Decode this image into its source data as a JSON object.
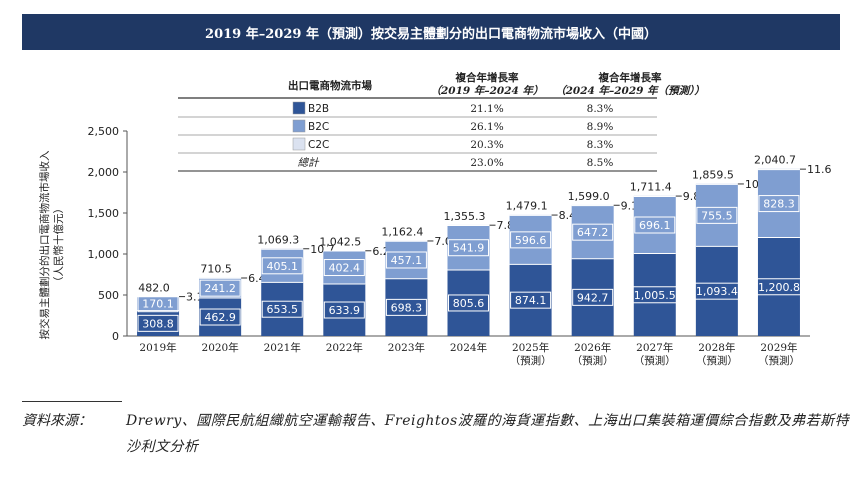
{
  "title": "2019 年–2029 年（預測）按交易主體劃分的出口電商物流市場收入（中國）",
  "chart_data": {
    "type": "bar",
    "stacked": true,
    "categories": [
      "2019年",
      "2020年",
      "2021年",
      "2022年",
      "2023年",
      "2024年",
      "2025年\n（預測）",
      "2026年\n（預測）",
      "2027年\n（預測）",
      "2028年\n（預測）",
      "2029年\n（預測）"
    ],
    "series": [
      {
        "name": "B2B",
        "color": "#2f5597",
        "values": [
          308.8,
          462.9,
          653.5,
          633.9,
          698.3,
          805.6,
          874.1,
          942.7,
          1005.5,
          1093.4,
          1200.8
        ]
      },
      {
        "name": "B2C",
        "color": "#7f9ed1",
        "values": [
          170.1,
          241.2,
          405.1,
          402.4,
          457.1,
          541.9,
          596.6,
          647.2,
          696.1,
          755.5,
          828.3
        ]
      },
      {
        "name": "C2C",
        "color": "#dbe2f0",
        "values": [
          3.1,
          6.4,
          10.7,
          6.2,
          7.0,
          7.8,
          8.4,
          9.1,
          9.8,
          10.6,
          11.6
        ]
      }
    ],
    "totals": [
      482.0,
      710.5,
      1069.3,
      1042.5,
      1162.4,
      1355.3,
      1479.1,
      1599.0,
      1711.4,
      1859.5,
      2040.7
    ],
    "value_labels": {
      "B2B": [
        "308.8",
        "462.9",
        "653.5",
        "633.9",
        "698.3",
        "805.6",
        "874.1",
        "942.7",
        "1,005.5",
        "1,093.4",
        "1,200.8"
      ],
      "B2C": [
        "170.1",
        "241.2",
        "405.1",
        "402.4",
        "457.1",
        "541.9",
        "596.6",
        "647.2",
        "696.1",
        "755.5",
        "828.3"
      ],
      "C2C": [
        "3.1",
        "6.4",
        "10.7",
        "6.2",
        "7.0",
        "7.8",
        "8.4",
        "9.1",
        "9.8",
        "10.6",
        "11.6"
      ],
      "total": [
        "482.0",
        "710.5",
        "1,069.3",
        "1,042.5",
        "1,162.4",
        "1,355.3",
        "1,479.1",
        "1,599.0",
        "1,711.4",
        "1,859.5",
        "2,040.7"
      ]
    },
    "ylim": [
      0,
      2500
    ],
    "yticks": [
      0,
      500,
      1000,
      1500,
      2000,
      2500
    ],
    "ytick_labels": [
      "0",
      "500",
      "1,000",
      "1,500",
      "2,000",
      "2,500"
    ],
    "ylabel": "按交易主體劃分的出口電商物流市場收入\n（人民幣十億元）",
    "legend_table": {
      "header": [
        "出口電商物流市場",
        "複合年增長率\n（2019 年–2024 年）",
        "複合年增長率\n（2024 年–2029 年（預測））"
      ],
      "rows": [
        {
          "label": "B2B",
          "color": "#2f5597",
          "cagr1": "21.1%",
          "cagr2": "8.3%"
        },
        {
          "label": "B2C",
          "color": "#7f9ed1",
          "cagr1": "26.1%",
          "cagr2": "8.9%"
        },
        {
          "label": "C2C",
          "color": "#dbe2f0",
          "cagr1": "20.3%",
          "cagr2": "8.3%"
        },
        {
          "label": "總計",
          "color": "",
          "cagr1": "23.0%",
          "cagr2": "8.5%"
        }
      ]
    }
  },
  "source": {
    "label": "資料來源：",
    "text": "Drewry、國際民航組織航空運輸報告、Freightos波羅的海貨運指數、上海出口集裝箱運價綜合指數及弗若斯特沙利文分析"
  }
}
